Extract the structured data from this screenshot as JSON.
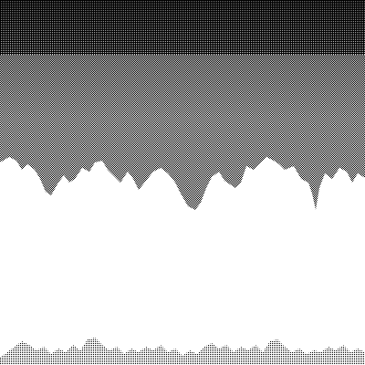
{
  "scene": {
    "description_free": true,
    "palette": {
      "background": "#ffffff",
      "ink": "#000000",
      "sky_dark": "#0b0b0b",
      "sky_mid": "#4a4a4a",
      "sky_light": "#9a9a9a",
      "ground": "#7a7a7a"
    },
    "style": "1-bit dithered pixel art"
  }
}
